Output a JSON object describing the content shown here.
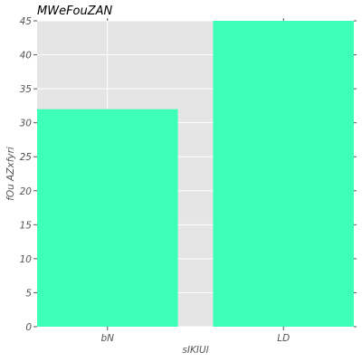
{
  "chart_data": {
    "type": "bar",
    "title": "MWeFouZAN",
    "xlabel": "sIKIUl",
    "ylabel": "fOu AZxfyri",
    "categories": [
      "bN",
      "LD"
    ],
    "values": [
      32,
      45
    ],
    "ylim": [
      0,
      45
    ],
    "yticks": [
      0,
      5,
      10,
      15,
      20,
      25,
      30,
      35,
      40,
      45
    ],
    "grid": true,
    "background_color": "#e5e5e5",
    "grid_color": "#ffffff",
    "bar_color": "#3dffb6"
  }
}
